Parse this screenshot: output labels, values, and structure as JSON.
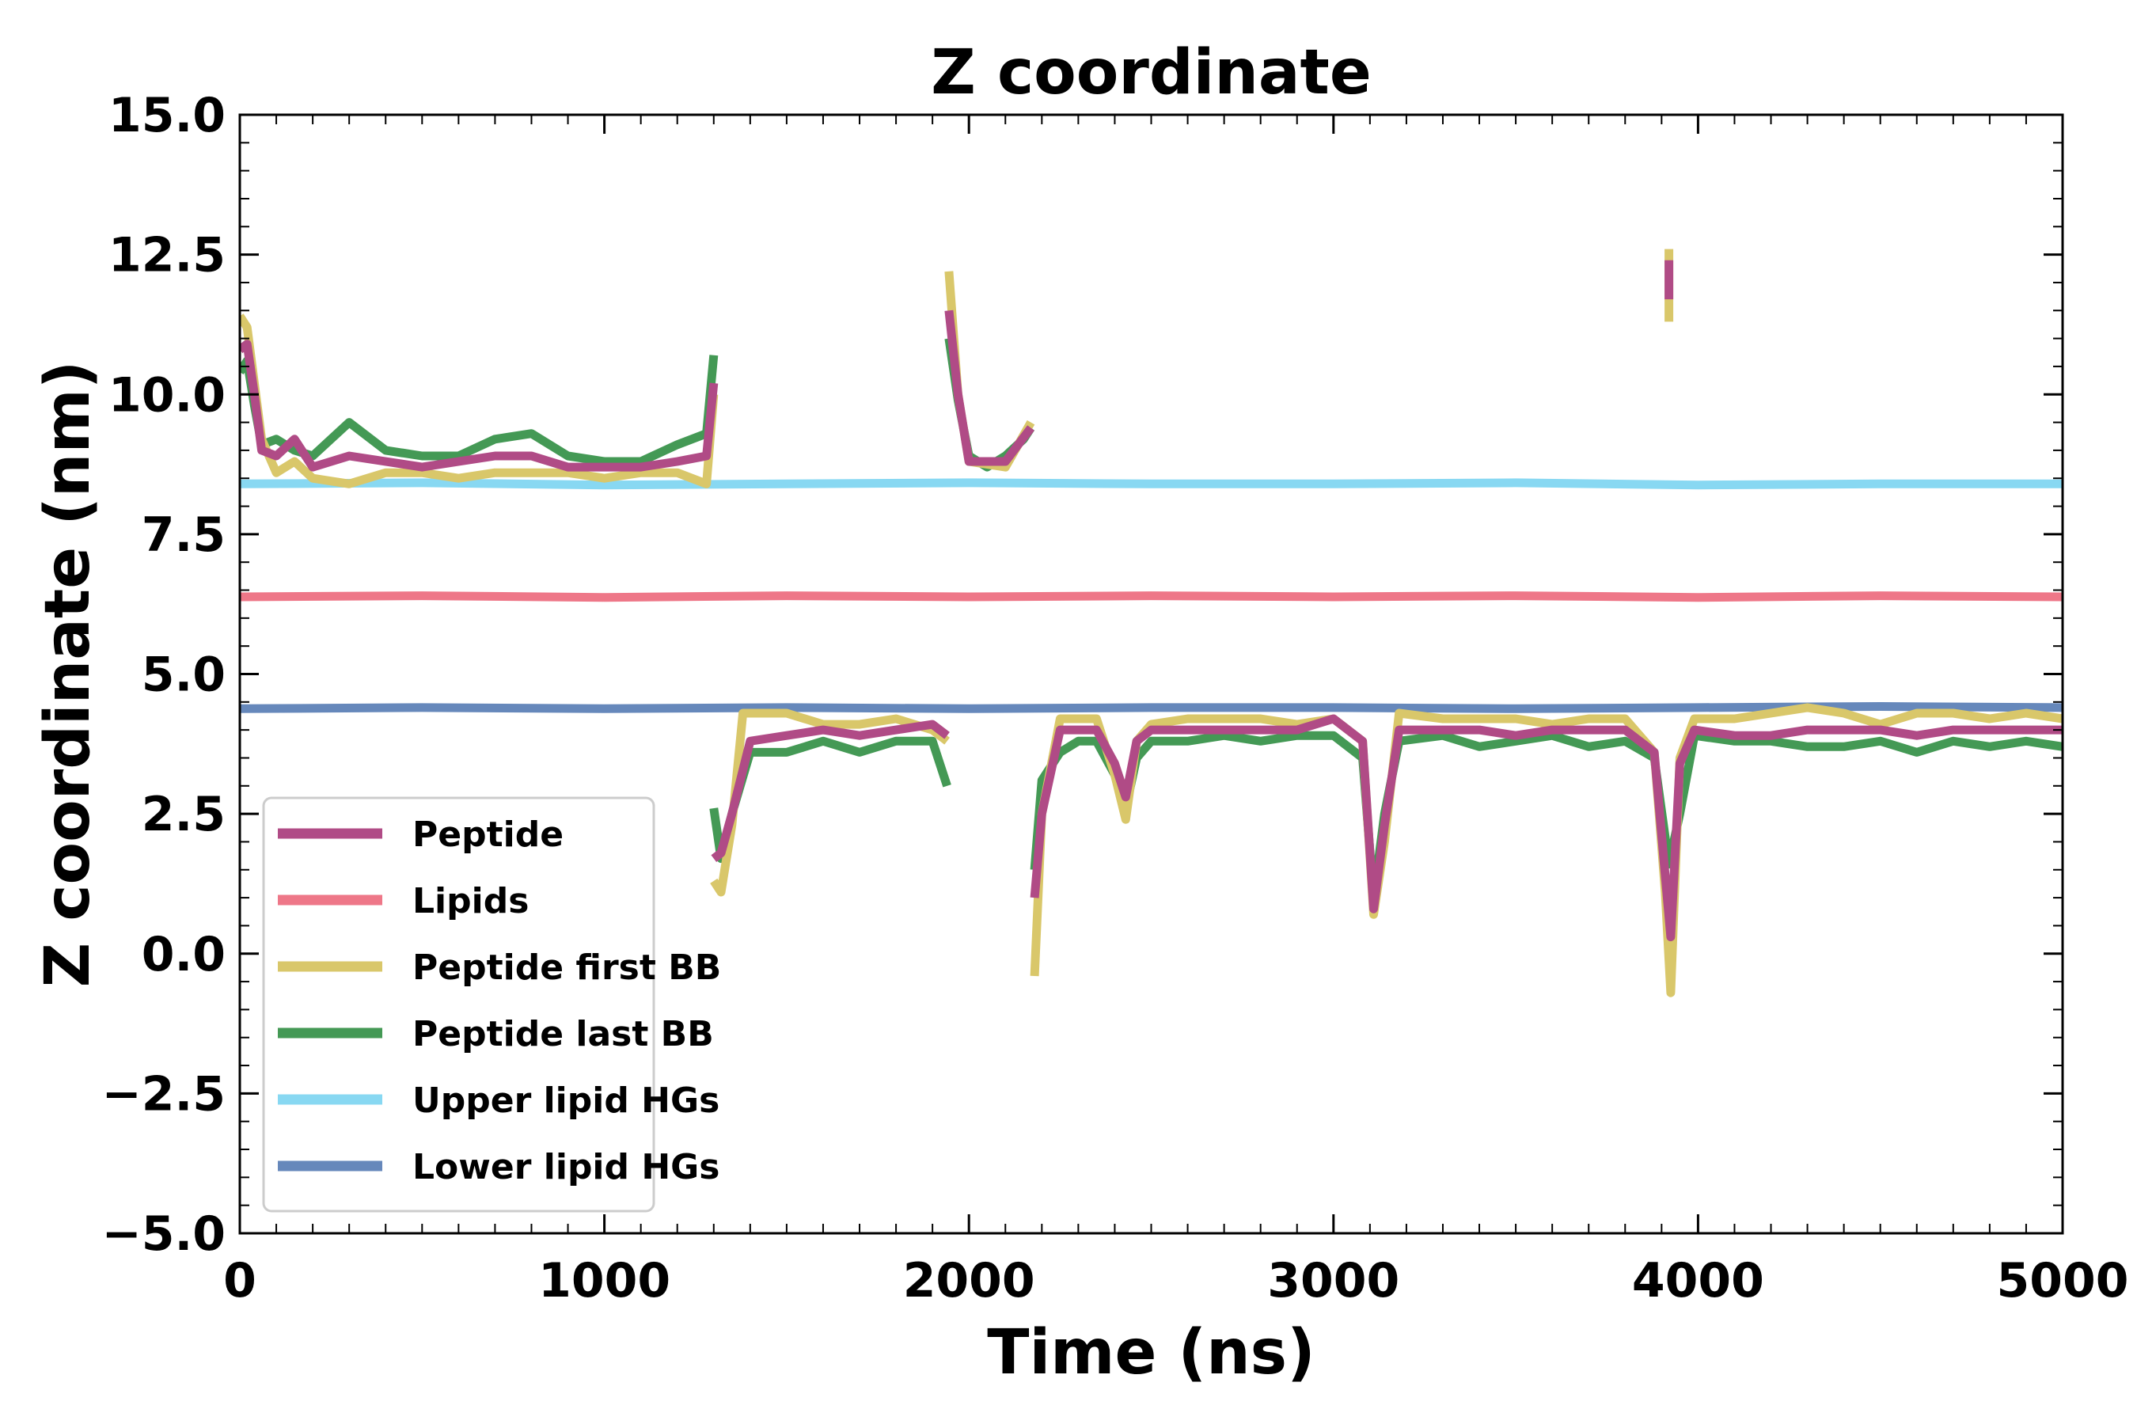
{
  "chart_data": {
    "type": "line",
    "title": "Z coordinate",
    "xlabel": "Time (ns)",
    "ylabel": "Z coordinate (nm)",
    "xlim": [
      0,
      5000
    ],
    "ylim": [
      -5.0,
      15.0
    ],
    "xticks": [
      0,
      1000,
      2000,
      3000,
      4000,
      5000
    ],
    "xtick_labels": [
      "0",
      "1000",
      "2000",
      "3000",
      "4000",
      "5000"
    ],
    "yticks": [
      -5.0,
      -2.5,
      0.0,
      2.5,
      5.0,
      7.5,
      10.0,
      12.5,
      15.0
    ],
    "ytick_labels": [
      "−5.0",
      "−2.5",
      "0.0",
      "2.5",
      "5.0",
      "7.5",
      "10.0",
      "12.5",
      "15.0"
    ],
    "grid": false,
    "legend_position": "lower-left",
    "series": [
      {
        "name": "Lipids",
        "color": "#ee7788",
        "segments": [
          [
            [
              0,
              6.38
            ],
            [
              500,
              6.4
            ],
            [
              1000,
              6.37
            ],
            [
              1500,
              6.4
            ],
            [
              2000,
              6.38
            ],
            [
              2500,
              6.4
            ],
            [
              3000,
              6.38
            ],
            [
              3500,
              6.4
            ],
            [
              4000,
              6.37
            ],
            [
              4500,
              6.4
            ],
            [
              5000,
              6.38
            ]
          ]
        ]
      },
      {
        "name": "Upper lipid HGs",
        "color": "#88d8f2",
        "segments": [
          [
            [
              0,
              8.4
            ],
            [
              500,
              8.42
            ],
            [
              1000,
              8.38
            ],
            [
              1500,
              8.4
            ],
            [
              2000,
              8.42
            ],
            [
              2500,
              8.4
            ],
            [
              3000,
              8.4
            ],
            [
              3500,
              8.42
            ],
            [
              4000,
              8.38
            ],
            [
              4500,
              8.4
            ],
            [
              5000,
              8.4
            ]
          ]
        ]
      },
      {
        "name": "Lower lipid HGs",
        "color": "#6688bb",
        "segments": [
          [
            [
              0,
              4.38
            ],
            [
              500,
              4.4
            ],
            [
              1000,
              4.38
            ],
            [
              1500,
              4.4
            ],
            [
              2000,
              4.38
            ],
            [
              2500,
              4.4
            ],
            [
              3000,
              4.4
            ],
            [
              3500,
              4.38
            ],
            [
              4000,
              4.4
            ],
            [
              4500,
              4.42
            ],
            [
              5000,
              4.4
            ]
          ]
        ]
      },
      {
        "name": "Peptide last BB",
        "color": "#449955",
        "segments": [
          [
            [
              0,
              10.4
            ],
            [
              20,
              10.6
            ],
            [
              40,
              9.8
            ],
            [
              60,
              9.1
            ],
            [
              100,
              9.2
            ],
            [
              150,
              9.0
            ],
            [
              200,
              8.9
            ],
            [
              300,
              9.5
            ],
            [
              400,
              9.0
            ],
            [
              500,
              8.9
            ],
            [
              600,
              8.9
            ],
            [
              700,
              9.2
            ],
            [
              800,
              9.3
            ],
            [
              900,
              8.9
            ],
            [
              1000,
              8.8
            ],
            [
              1100,
              8.8
            ],
            [
              1200,
              9.1
            ],
            [
              1280,
              9.3
            ],
            [
              1300,
              10.7
            ]
          ],
          [
            [
              1300,
              2.6
            ],
            [
              1320,
              1.7
            ],
            [
              1350,
              2.5
            ],
            [
              1400,
              3.6
            ],
            [
              1500,
              3.6
            ],
            [
              1600,
              3.8
            ],
            [
              1700,
              3.6
            ],
            [
              1800,
              3.8
            ],
            [
              1900,
              3.8
            ],
            [
              1940,
              3.0
            ]
          ],
          [
            [
              1945,
              11.0
            ],
            [
              1970,
              9.9
            ],
            [
              2000,
              8.9
            ],
            [
              2050,
              8.7
            ],
            [
              2100,
              8.9
            ],
            [
              2150,
              9.2
            ],
            [
              2170,
              9.4
            ]
          ],
          [
            [
              2180,
              1.5
            ],
            [
              2200,
              3.1
            ],
            [
              2250,
              3.6
            ],
            [
              2300,
              3.8
            ],
            [
              2350,
              3.8
            ],
            [
              2400,
              3.2
            ],
            [
              2430,
              2.6
            ],
            [
              2460,
              3.5
            ],
            [
              2500,
              3.8
            ],
            [
              2600,
              3.8
            ],
            [
              2700,
              3.9
            ],
            [
              2800,
              3.8
            ],
            [
              2900,
              3.9
            ],
            [
              3000,
              3.9
            ],
            [
              3080,
              3.5
            ],
            [
              3110,
              1.0
            ],
            [
              3140,
              2.5
            ],
            [
              3180,
              3.8
            ],
            [
              3300,
              3.9
            ],
            [
              3400,
              3.7
            ],
            [
              3500,
              3.8
            ],
            [
              3600,
              3.9
            ],
            [
              3700,
              3.7
            ],
            [
              3800,
              3.8
            ],
            [
              3880,
              3.5
            ],
            [
              3920,
              1.6
            ],
            [
              3950,
              2.5
            ],
            [
              3990,
              3.9
            ],
            [
              4100,
              3.8
            ],
            [
              4200,
              3.8
            ],
            [
              4300,
              3.7
            ],
            [
              4400,
              3.7
            ],
            [
              4500,
              3.8
            ],
            [
              4600,
              3.6
            ],
            [
              4700,
              3.8
            ],
            [
              4800,
              3.7
            ],
            [
              4900,
              3.8
            ],
            [
              5000,
              3.7
            ]
          ]
        ]
      },
      {
        "name": "Peptide first BB",
        "color": "#d9c76a",
        "segments": [
          [
            [
              0,
              11.4
            ],
            [
              20,
              11.2
            ],
            [
              40,
              10.2
            ],
            [
              60,
              9.2
            ],
            [
              100,
              8.6
            ],
            [
              150,
              8.8
            ],
            [
              200,
              8.5
            ],
            [
              300,
              8.4
            ],
            [
              400,
              8.6
            ],
            [
              500,
              8.6
            ],
            [
              600,
              8.5
            ],
            [
              700,
              8.6
            ],
            [
              800,
              8.6
            ],
            [
              900,
              8.6
            ],
            [
              1000,
              8.5
            ],
            [
              1100,
              8.6
            ],
            [
              1200,
              8.6
            ],
            [
              1280,
              8.4
            ],
            [
              1300,
              10.0
            ]
          ],
          [
            [
              1300,
              1.3
            ],
            [
              1320,
              1.1
            ],
            [
              1350,
              2.3
            ],
            [
              1380,
              4.3
            ],
            [
              1500,
              4.3
            ],
            [
              1600,
              4.1
            ],
            [
              1700,
              4.1
            ],
            [
              1800,
              4.2
            ],
            [
              1900,
              4.0
            ],
            [
              1940,
              3.8
            ]
          ],
          [
            [
              1945,
              12.2
            ],
            [
              1970,
              10.0
            ],
            [
              2000,
              8.8
            ],
            [
              2100,
              8.7
            ],
            [
              2170,
              9.5
            ]
          ],
          [
            [
              2180,
              -0.4
            ],
            [
              2200,
              2.5
            ],
            [
              2250,
              4.2
            ],
            [
              2300,
              4.2
            ],
            [
              2350,
              4.2
            ],
            [
              2400,
              3.2
            ],
            [
              2430,
              2.4
            ],
            [
              2460,
              3.8
            ],
            [
              2500,
              4.1
            ],
            [
              2600,
              4.2
            ],
            [
              2700,
              4.2
            ],
            [
              2800,
              4.2
            ],
            [
              2900,
              4.1
            ],
            [
              3000,
              4.2
            ],
            [
              3080,
              3.8
            ],
            [
              3110,
              0.7
            ],
            [
              3140,
              2.0
            ],
            [
              3180,
              4.3
            ],
            [
              3300,
              4.2
            ],
            [
              3400,
              4.2
            ],
            [
              3500,
              4.2
            ],
            [
              3600,
              4.1
            ],
            [
              3700,
              4.2
            ],
            [
              3800,
              4.2
            ],
            [
              3880,
              3.6
            ],
            [
              3910,
              1.1
            ],
            [
              3925,
              -0.7
            ],
            [
              3950,
              3.5
            ],
            [
              3990,
              4.2
            ],
            [
              4100,
              4.2
            ],
            [
              4200,
              4.3
            ],
            [
              4300,
              4.4
            ],
            [
              4400,
              4.3
            ],
            [
              4500,
              4.1
            ],
            [
              4600,
              4.3
            ],
            [
              4700,
              4.3
            ],
            [
              4800,
              4.2
            ],
            [
              4900,
              4.3
            ],
            [
              5000,
              4.2
            ]
          ],
          [
            [
              3920,
              12.6
            ],
            [
              3920,
              11.3
            ]
          ]
        ]
      },
      {
        "name": "Peptide",
        "color": "#b04b86",
        "segments": [
          [
            [
              0,
              10.8
            ],
            [
              20,
              10.9
            ],
            [
              40,
              10.0
            ],
            [
              60,
              9.0
            ],
            [
              100,
              8.9
            ],
            [
              150,
              9.2
            ],
            [
              200,
              8.7
            ],
            [
              300,
              8.9
            ],
            [
              400,
              8.8
            ],
            [
              500,
              8.7
            ],
            [
              600,
              8.8
            ],
            [
              700,
              8.9
            ],
            [
              800,
              8.9
            ],
            [
              900,
              8.7
            ],
            [
              1000,
              8.7
            ],
            [
              1100,
              8.7
            ],
            [
              1200,
              8.8
            ],
            [
              1280,
              8.9
            ],
            [
              1300,
              10.2
            ]
          ],
          [
            [
              1300,
              1.7
            ],
            [
              1320,
              1.8
            ],
            [
              1350,
              2.5
            ],
            [
              1400,
              3.8
            ],
            [
              1500,
              3.9
            ],
            [
              1600,
              4.0
            ],
            [
              1700,
              3.9
            ],
            [
              1800,
              4.0
            ],
            [
              1900,
              4.1
            ],
            [
              1940,
              3.9
            ]
          ],
          [
            [
              1945,
              11.5
            ],
            [
              1970,
              10.0
            ],
            [
              2000,
              8.8
            ],
            [
              2100,
              8.8
            ],
            [
              2170,
              9.4
            ]
          ],
          [
            [
              2180,
              1.0
            ],
            [
              2200,
              2.5
            ],
            [
              2250,
              4.0
            ],
            [
              2300,
              4.0
            ],
            [
              2350,
              4.0
            ],
            [
              2400,
              3.4
            ],
            [
              2430,
              2.8
            ],
            [
              2460,
              3.8
            ],
            [
              2500,
              4.0
            ],
            [
              2600,
              4.0
            ],
            [
              2700,
              4.0
            ],
            [
              2800,
              4.0
            ],
            [
              2900,
              4.0
            ],
            [
              3000,
              4.2
            ],
            [
              3080,
              3.8
            ],
            [
              3110,
              0.8
            ],
            [
              3140,
              2.3
            ],
            [
              3180,
              4.0
            ],
            [
              3300,
              4.0
            ],
            [
              3400,
              4.0
            ],
            [
              3500,
              3.9
            ],
            [
              3600,
              4.0
            ],
            [
              3700,
              4.0
            ],
            [
              3800,
              4.0
            ],
            [
              3880,
              3.6
            ],
            [
              3910,
              1.4
            ],
            [
              3925,
              0.3
            ],
            [
              3950,
              3.4
            ],
            [
              3990,
              4.0
            ],
            [
              4100,
              3.9
            ],
            [
              4200,
              3.9
            ],
            [
              4300,
              4.0
            ],
            [
              4400,
              4.0
            ],
            [
              4500,
              4.0
            ],
            [
              4600,
              3.9
            ],
            [
              4700,
              4.0
            ],
            [
              4800,
              4.0
            ],
            [
              4900,
              4.0
            ],
            [
              5000,
              4.0
            ]
          ],
          [
            [
              3920,
              12.4
            ],
            [
              3920,
              11.7
            ]
          ]
        ]
      }
    ],
    "legend_order": [
      "Peptide",
      "Lipids",
      "Peptide first BB",
      "Peptide last BB",
      "Upper lipid HGs",
      "Lower lipid HGs"
    ]
  }
}
